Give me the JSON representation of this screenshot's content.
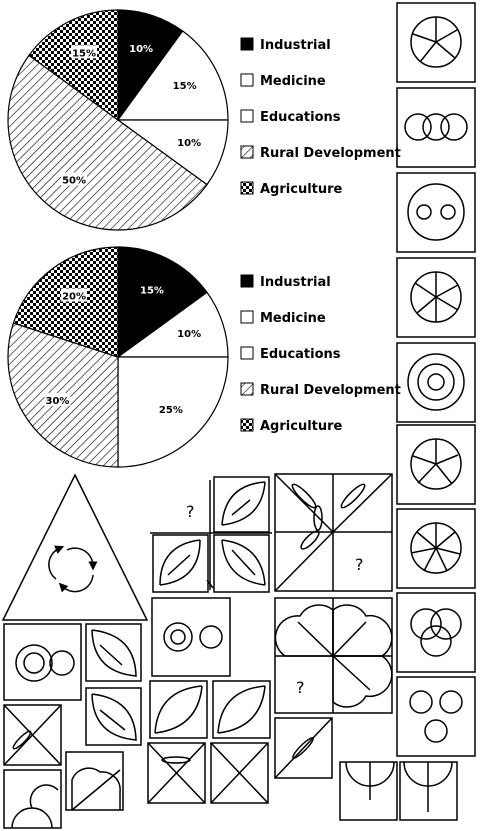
{
  "chart_data": [
    {
      "type": "pie",
      "categories": [
        "Industrial",
        "Medicine",
        "Educations",
        "Rural Development",
        "Agriculture"
      ],
      "values": [
        10,
        15,
        10,
        50,
        15
      ],
      "labels": [
        "10%",
        "15%",
        "10%",
        "50%",
        "15%"
      ],
      "legend": [
        "Industrial",
        "Medicine",
        "Educations",
        "Rural Development",
        "Agriculture"
      ],
      "legend_position": "right"
    },
    {
      "type": "pie",
      "categories": [
        "Industrial",
        "Medicine",
        "Educations",
        "Rural Development",
        "Agriculture"
      ],
      "values": [
        15,
        10,
        25,
        30,
        20
      ],
      "labels": [
        "15%",
        "10%",
        "25%",
        "30%",
        "20%"
      ],
      "legend": [
        "Industrial",
        "Medicine",
        "Educations",
        "Rural Development",
        "Agriculture"
      ],
      "legend_position": "right"
    }
  ],
  "colors": {
    "industrial": "#000000",
    "medicine": "#ffffff",
    "educations": "#ffffff",
    "rural_development": "hatched",
    "agriculture": "checkered"
  },
  "puzzle": {
    "question_mark": "?"
  }
}
